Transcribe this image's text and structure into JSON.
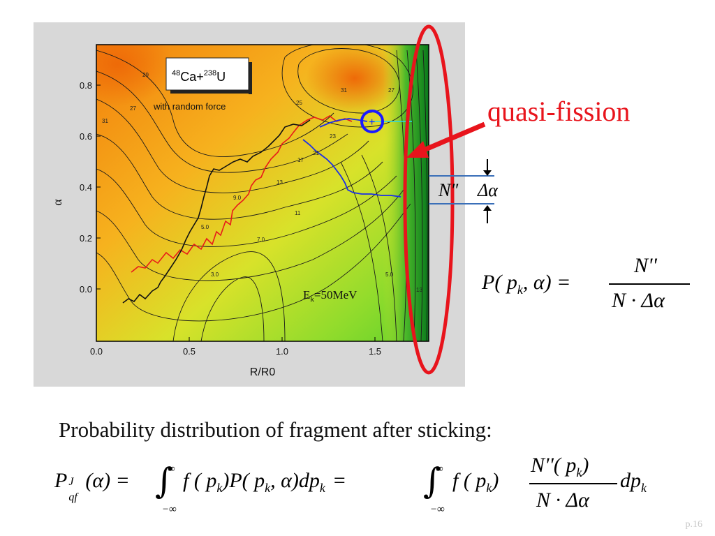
{
  "figure": {
    "reaction_label": {
      "sup1": "48",
      "el1": "Ca+",
      "sup2": "238",
      "el2": "U"
    },
    "subtitle": "with random force",
    "energy_label": {
      "base": "E",
      "sub": "k",
      "rest": "=50MeV"
    },
    "xlabel": "R/R0",
    "ylabel": "α",
    "x_ticks": [
      "0.0",
      "0.5",
      "1.0",
      "1.5"
    ],
    "y_ticks": [
      "0.8",
      "0.6",
      "0.4",
      "0.2",
      "0.0"
    ],
    "contour_labels": [
      "29",
      "27",
      "31",
      "31",
      "27",
      "25",
      "23",
      "21",
      "17",
      "13",
      "11",
      "9.0",
      "7.0",
      "5.0",
      "3.0",
      "5.0",
      "13"
    ]
  },
  "annotation": {
    "quasi_fission": "quasi-fission",
    "n_double_prime": "N″",
    "delta_alpha": "Δα"
  },
  "formula_p": {
    "lhs": "P( p",
    "lhs_sub": "k",
    "lhs_rest": ", α) =",
    "num": "N''",
    "den": "N · Δα"
  },
  "caption": "Probability distribution of fragment after sticking:",
  "formula_main": {
    "lhs": "P",
    "lhs_sup": "J",
    "lhs_sub": "qf",
    "part1": "(α) =",
    "int_top": "∞",
    "int_bot": "−∞",
    "part2": "f ( p",
    "sub_k": "k",
    "part3": ")P( p",
    "part4": ", α)dp",
    "part5": "=",
    "part6": "f ( p",
    "part7": ")",
    "num": "N''( p",
    "num_end": ")",
    "den": "N · Δα",
    "tail": "dp"
  },
  "page_number": "p.16",
  "colors": {
    "accent_red": "#e8141c",
    "circle_blue": "#1a1aff"
  }
}
